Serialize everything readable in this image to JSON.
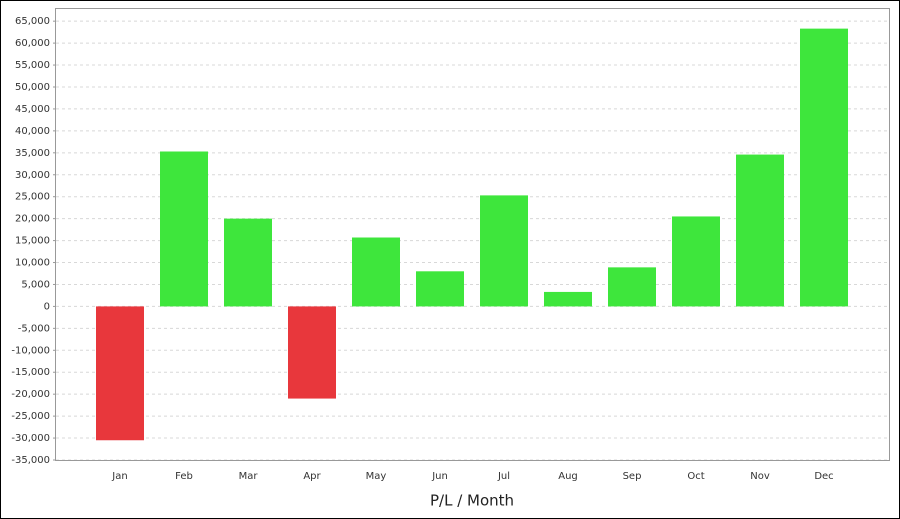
{
  "chart_data": {
    "type": "bar",
    "x_label": "P/L / Month",
    "categories": [
      "Jan",
      "Feb",
      "Mar",
      "Apr",
      "May",
      "Jun",
      "Jul",
      "Aug",
      "Sep",
      "Oct",
      "Nov",
      "Dec"
    ],
    "values": [
      -30500,
      35300,
      20000,
      -21000,
      15700,
      8000,
      25300,
      3300,
      8900,
      20500,
      34600,
      63300
    ],
    "positive_color": "#3ee63c",
    "negative_color": "#e8373c",
    "ylim": [
      -35000,
      68000
    ],
    "yticks": [
      {
        "value": -35000,
        "label": "-35,000"
      },
      {
        "value": -30000,
        "label": "-30,000"
      },
      {
        "value": -25000,
        "label": "-25,000"
      },
      {
        "value": -20000,
        "label": "-20,000"
      },
      {
        "value": -15000,
        "label": "-15,000"
      },
      {
        "value": -10000,
        "label": "-10,000"
      },
      {
        "value": -5000,
        "label": "-5,000"
      },
      0,
      {
        "value": 5000,
        "label": "5,000"
      },
      {
        "value": 10000,
        "label": "10,000"
      },
      {
        "value": 15000,
        "label": "15,000"
      },
      {
        "value": 20000,
        "label": "20,000"
      },
      {
        "value": 25000,
        "label": "25,000"
      },
      {
        "value": 30000,
        "label": "30,000"
      },
      {
        "value": 35000,
        "label": "35,000"
      },
      {
        "value": 40000,
        "label": "40,000"
      },
      {
        "value": 45000,
        "label": "45,000"
      },
      {
        "value": 50000,
        "label": "50,000"
      },
      {
        "value": 55000,
        "label": "55,000"
      },
      {
        "value": 60000,
        "label": "60,000"
      },
      {
        "value": 65000,
        "label": "65,000"
      }
    ],
    "grid": true
  }
}
